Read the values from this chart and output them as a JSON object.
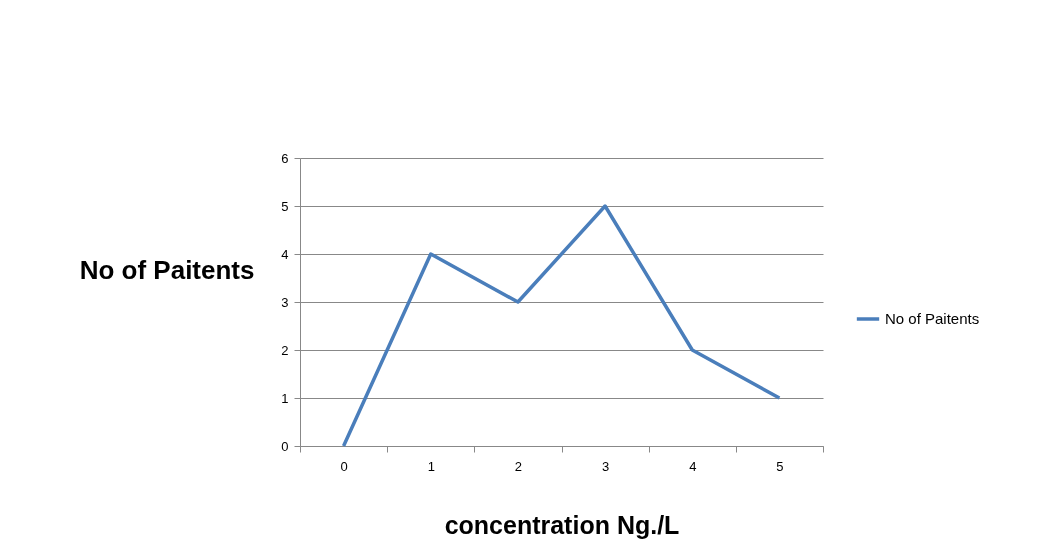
{
  "chart_data": {
    "type": "line",
    "xlabel": "concentration Ng./L",
    "ylabel": "No of Paitents",
    "categories": [
      "0",
      "1",
      "2",
      "3",
      "4",
      "5"
    ],
    "series": [
      {
        "name": "No of Paitents",
        "color": "#4a7ebb",
        "values": [
          0,
          4,
          3,
          5,
          2,
          1
        ]
      }
    ],
    "ylim": [
      0,
      6
    ],
    "yticks": [
      0,
      1,
      2,
      3,
      4,
      5,
      6
    ],
    "grid": "y",
    "legend": "right",
    "marker": "none",
    "line_style": "solid"
  }
}
